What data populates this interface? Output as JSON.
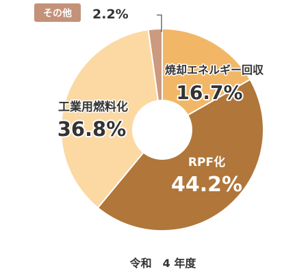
{
  "chart_data": {
    "type": "pie",
    "donut": true,
    "slices": [
      {
        "label": "焼却エネルギー回収",
        "value": 16.7,
        "value_text": "16.7%",
        "color": "#f2b766"
      },
      {
        "label": "RPF化",
        "value": 44.2,
        "value_text": "44.2%",
        "color": "#b0763a"
      },
      {
        "label": "工業用燃料化",
        "value": 36.8,
        "value_text": "36.8%",
        "color": "#fcd9a3"
      },
      {
        "label": "その他",
        "value": 2.2,
        "value_text": "2.2%",
        "color": "#cc9a7e"
      }
    ],
    "caption": "令和　4 年度",
    "legend": "none"
  }
}
